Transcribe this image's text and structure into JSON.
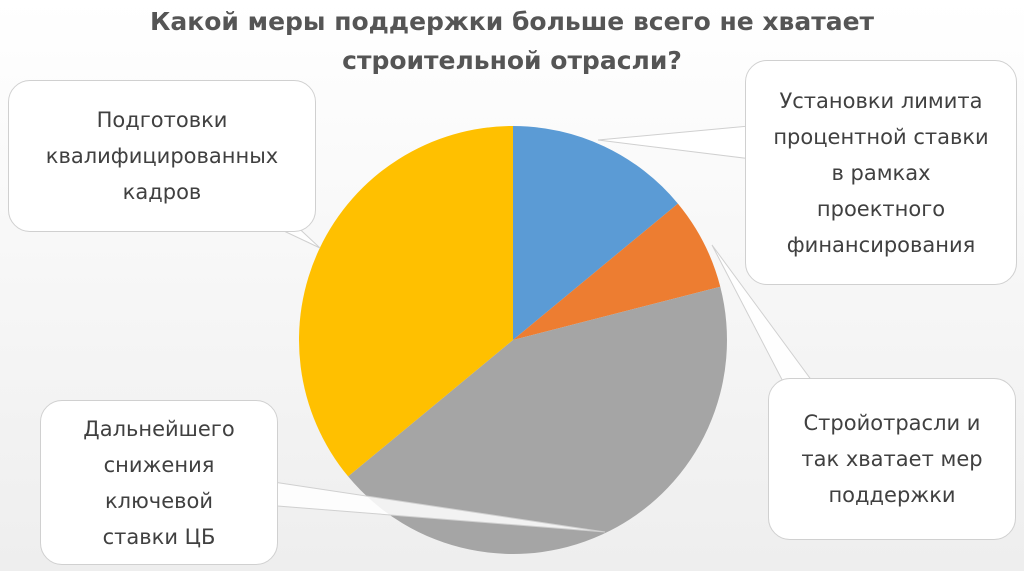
{
  "chart_data": {
    "type": "pie",
    "title": "Какой меры поддержки больше всего не хватает\nстроительной отрасли?",
    "categories": [
      "Установки лимита\nпроцентной ставки\nв рамках\nпроектного\nфинансирования",
      "Стройотрасли и\nтак хватает мер\nподдержки",
      "Дальнейшего\nснижения\nключевой\nставки ЦБ",
      "Подготовки\nквалифицированных\nкадров"
    ],
    "values": [
      14,
      7,
      43,
      36
    ],
    "colors": [
      "#5b9bd5",
      "#ed7d31",
      "#a5a5a5",
      "#ffc000"
    ]
  }
}
